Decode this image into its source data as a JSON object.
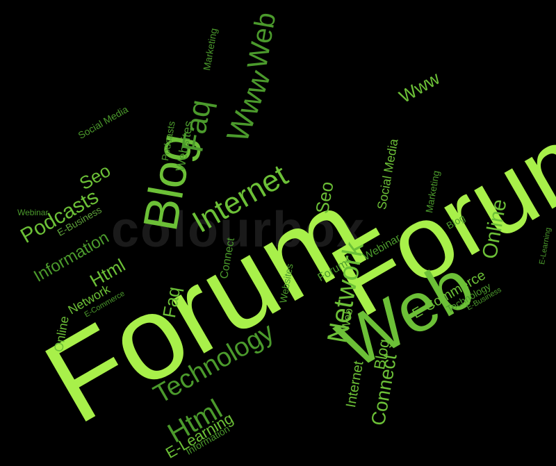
{
  "colors": {
    "background": "#000000",
    "bright": "#a8f04a",
    "mid": "#6cc037",
    "dark": "#4b9a2c",
    "pale": "#5ea33a"
  },
  "watermark": "colourbox",
  "words": [
    {
      "text": "Forum",
      "tone": "bright"
    },
    {
      "text": "Forum",
      "tone": "bright"
    },
    {
      "text": "Web",
      "tone": "mid"
    },
    {
      "text": "Internet",
      "tone": "mid"
    },
    {
      "text": "Blog",
      "tone": "mid"
    },
    {
      "text": "Faq",
      "tone": "dark"
    },
    {
      "text": "Www",
      "tone": "dark"
    },
    {
      "text": "Web",
      "tone": "dark"
    },
    {
      "text": "Marketing",
      "tone": "dark"
    },
    {
      "text": "Websites",
      "tone": "dark"
    },
    {
      "text": "Podcasts",
      "tone": "dark"
    },
    {
      "text": "Social Media",
      "tone": "dark"
    },
    {
      "text": "Seo",
      "tone": "mid"
    },
    {
      "text": "Podcasts",
      "tone": "mid"
    },
    {
      "text": "Webinar",
      "tone": "dark"
    },
    {
      "text": "E-Business",
      "tone": "pale"
    },
    {
      "text": "Information",
      "tone": "dark"
    },
    {
      "text": "Html",
      "tone": "mid"
    },
    {
      "text": "Network",
      "tone": "mid"
    },
    {
      "text": "E-Commerce",
      "tone": "dark"
    },
    {
      "text": "Online",
      "tone": "mid"
    },
    {
      "text": "Faq",
      "tone": "mid"
    },
    {
      "text": "Connect",
      "tone": "dark"
    },
    {
      "text": "Network",
      "tone": "mid"
    },
    {
      "text": "Websites",
      "tone": "dark"
    },
    {
      "text": "Seo",
      "tone": "mid"
    },
    {
      "text": "Social Media",
      "tone": "mid"
    },
    {
      "text": "Www",
      "tone": "mid"
    },
    {
      "text": "Marketing",
      "tone": "dark"
    },
    {
      "text": "Blog",
      "tone": "dark"
    },
    {
      "text": "Online",
      "tone": "mid"
    },
    {
      "text": "E-Learning",
      "tone": "dark"
    },
    {
      "text": "Forum",
      "tone": "dark"
    },
    {
      "text": "Webinar",
      "tone": "dark"
    },
    {
      "text": "E-Commerce",
      "tone": "mid"
    },
    {
      "text": "Technology",
      "tone": "dark"
    },
    {
      "text": "E-Business",
      "tone": "dark"
    },
    {
      "text": "Technology",
      "tone": "dark"
    },
    {
      "text": "Web",
      "tone": "mid"
    },
    {
      "text": "Blog",
      "tone": "mid"
    },
    {
      "text": "Internet",
      "tone": "mid"
    },
    {
      "text": "Connect",
      "tone": "mid"
    },
    {
      "text": "Html",
      "tone": "dark"
    },
    {
      "text": "E-Learning",
      "tone": "mid"
    },
    {
      "text": "Information",
      "tone": "dark"
    }
  ]
}
